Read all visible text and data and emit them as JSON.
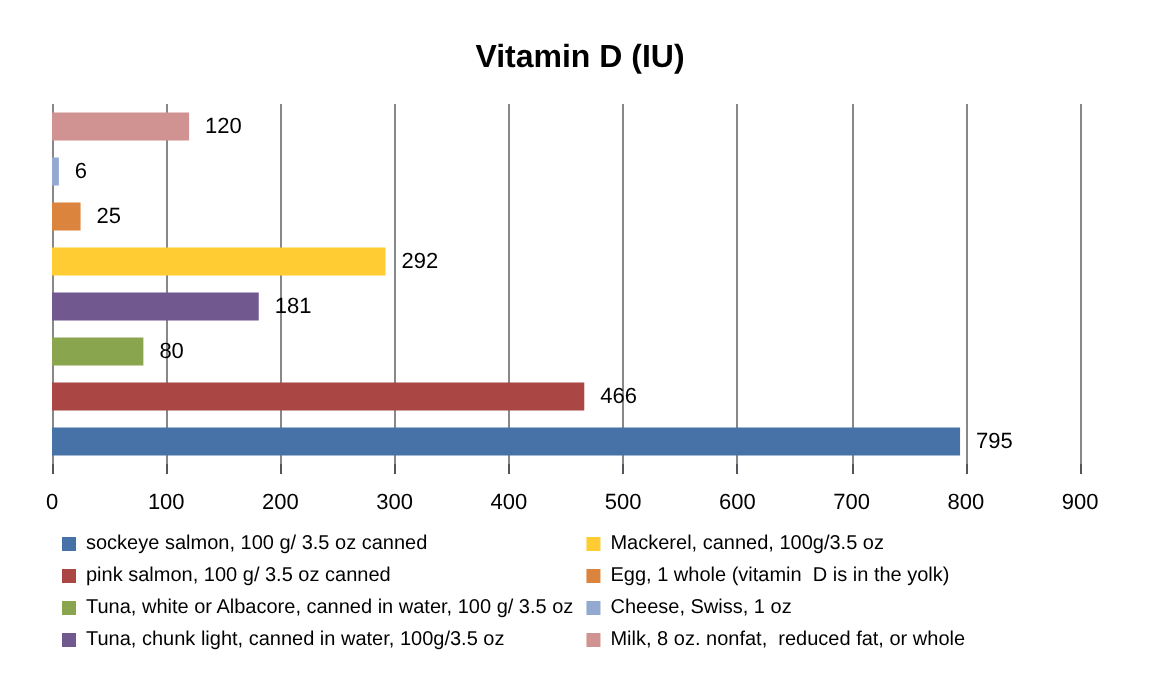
{
  "chart_data": {
    "type": "bar",
    "orientation": "horizontal",
    "title": "Vitamin D (IU)",
    "categories": [
      null,
      null,
      null,
      null,
      null,
      null,
      null,
      null
    ],
    "series": [
      {
        "name": "sockeye salmon, 100 g/ 3.5 oz canned",
        "color": "#4672a8",
        "values": [
          null,
          null,
          null,
          null,
          null,
          null,
          null,
          795
        ]
      },
      {
        "name": "pink salmon, 100 g/ 3.5 oz canned",
        "color": "#aa4643",
        "values": [
          null,
          null,
          null,
          null,
          null,
          null,
          466,
          null
        ]
      },
      {
        "name": "Tuna, white or Albacore, canned in water, 100 g/ 3.5 oz",
        "color": "#89a54e",
        "values": [
          null,
          null,
          null,
          null,
          null,
          80,
          null,
          null
        ]
      },
      {
        "name": "Tuna, chunk light, canned in water, 100g/3.5 oz",
        "color": "#71588f",
        "values": [
          null,
          null,
          null,
          null,
          181,
          null,
          null,
          null
        ]
      },
      {
        "name": "Mackerel, canned, 100g/3.5 oz",
        "color": "#ffcc33",
        "values": [
          null,
          null,
          null,
          292,
          null,
          null,
          null,
          null
        ]
      },
      {
        "name": "Egg, 1 whole (vitamin  D is in the yolk)",
        "color": "#db843d",
        "values": [
          null,
          null,
          25,
          null,
          null,
          null,
          null,
          null
        ]
      },
      {
        "name": "Cheese, Swiss, 1 oz",
        "color": "#93a9cf",
        "values": [
          null,
          6,
          null,
          null,
          null,
          null,
          null,
          null
        ]
      },
      {
        "name": "Milk, 8 oz. nonfat,  reduced fat, or whole",
        "color": "#d19392",
        "values": [
          120,
          null,
          null,
          null,
          null,
          null,
          null,
          null
        ]
      }
    ],
    "xlim": [
      0,
      900
    ],
    "xticks": [
      0,
      100,
      200,
      300,
      400,
      500,
      600,
      700,
      800,
      900
    ],
    "grid": "x",
    "legend": "bottom",
    "data_labels": true
  }
}
